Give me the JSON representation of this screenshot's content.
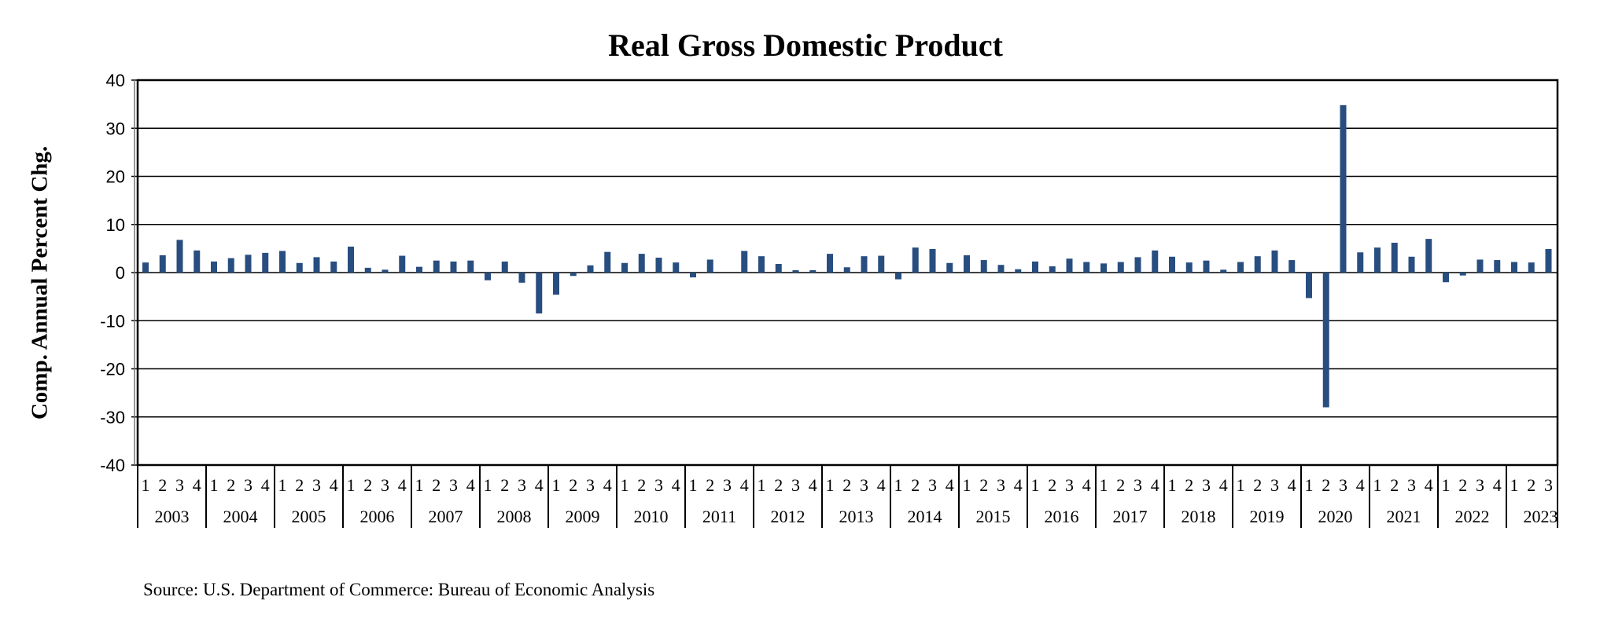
{
  "chart_data": {
    "type": "bar",
    "title": "Real Gross Domestic Product",
    "xlabel": "",
    "ylabel": "Comp. Annual Percent Chg.",
    "ylim": [
      -40,
      40
    ],
    "yticks": [
      40,
      30,
      20,
      10,
      0,
      -10,
      -20,
      -30,
      -40
    ],
    "grid": true,
    "legend": "none",
    "series_color": "#284e80",
    "years": [
      "2003",
      "2004",
      "2005",
      "2006",
      "2007",
      "2008",
      "2009",
      "2010",
      "2011",
      "2012",
      "2013",
      "2014",
      "2015",
      "2016",
      "2017",
      "2018",
      "2019",
      "2020",
      "2021",
      "2022",
      "2023"
    ],
    "quarter_labels": [
      "1",
      "2",
      "3",
      "4"
    ],
    "series": [
      {
        "name": "Real GDP",
        "values": [
          2.1,
          3.6,
          6.8,
          4.6,
          2.3,
          3.0,
          3.7,
          4.1,
          4.5,
          2.0,
          3.2,
          2.3,
          5.4,
          1.0,
          0.6,
          3.5,
          1.2,
          2.5,
          2.3,
          2.5,
          -1.6,
          2.3,
          -2.1,
          -8.5,
          -4.6,
          -0.7,
          1.5,
          4.3,
          2.0,
          3.9,
          3.1,
          2.1,
          -1.0,
          2.7,
          0.0,
          4.5,
          3.4,
          1.8,
          0.5,
          0.5,
          3.9,
          1.1,
          3.4,
          3.5,
          -1.4,
          5.2,
          4.9,
          2.0,
          3.6,
          2.6,
          1.6,
          0.7,
          2.3,
          1.3,
          2.9,
          2.2,
          1.9,
          2.2,
          3.2,
          4.6,
          3.3,
          2.1,
          2.5,
          0.6,
          2.2,
          3.4,
          4.6,
          2.6,
          -5.3,
          -28.0,
          34.8,
          4.2,
          5.2,
          6.2,
          3.3,
          7.0,
          -2.0,
          -0.6,
          2.7,
          2.6,
          2.2,
          2.1,
          4.9
        ]
      }
    ]
  },
  "source": "Source: U.S. Department of Commerce: Bureau of Economic Analysis"
}
